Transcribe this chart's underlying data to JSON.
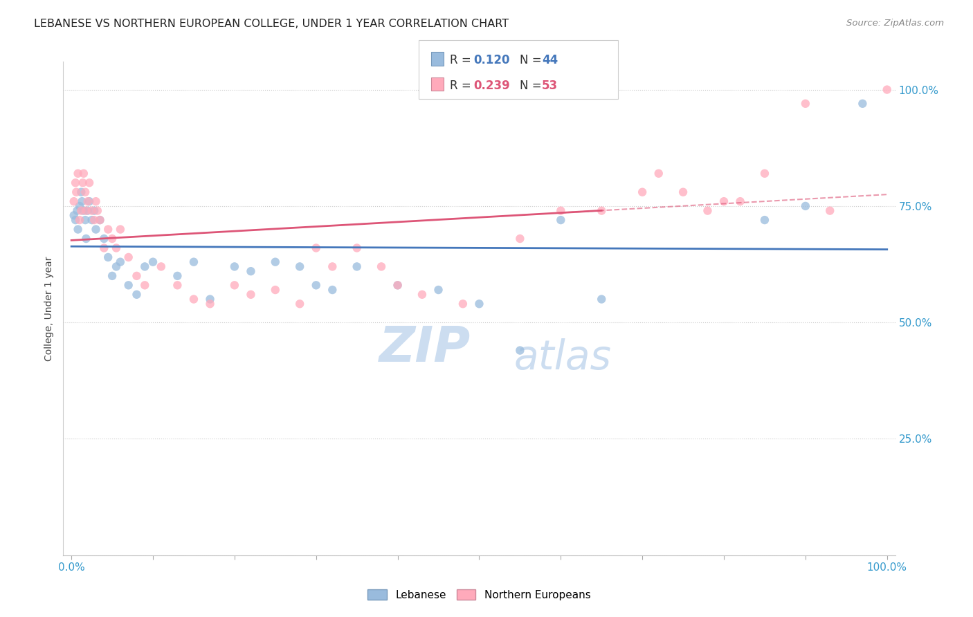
{
  "title": "LEBANESE VS NORTHERN EUROPEAN COLLEGE, UNDER 1 YEAR CORRELATION CHART",
  "source": "Source: ZipAtlas.com",
  "ylabel": "College, Under 1 year",
  "legend1_label": "Lebanese",
  "legend2_label": "Northern Europeans",
  "R1": 0.12,
  "N1": 44,
  "R2": 0.239,
  "N2": 53,
  "color_blue": "#99BBDD",
  "color_pink": "#FFAABB",
  "color_blue_line": "#4477BB",
  "color_pink_line": "#DD5577",
  "watermark_zip": "ZIP",
  "watermark_atlas": "atlas",
  "blue_x": [
    0.3,
    0.5,
    0.7,
    0.8,
    1.0,
    1.2,
    1.3,
    1.5,
    1.7,
    1.8,
    2.0,
    2.2,
    2.5,
    2.8,
    3.0,
    3.5,
    4.0,
    4.5,
    5.0,
    5.5,
    6.0,
    7.0,
    8.0,
    9.0,
    10.0,
    13.0,
    15.0,
    17.0,
    20.0,
    22.0,
    25.0,
    28.0,
    30.0,
    32.0,
    35.0,
    40.0,
    45.0,
    50.0,
    55.0,
    60.0,
    65.0,
    85.0,
    90.0,
    97.0
  ],
  "blue_y": [
    73.0,
    72.0,
    74.0,
    70.0,
    75.0,
    78.0,
    76.0,
    74.0,
    72.0,
    68.0,
    74.0,
    76.0,
    72.0,
    74.0,
    70.0,
    72.0,
    68.0,
    64.0,
    60.0,
    62.0,
    63.0,
    58.0,
    56.0,
    62.0,
    63.0,
    60.0,
    63.0,
    55.0,
    62.0,
    61.0,
    63.0,
    62.0,
    58.0,
    57.0,
    62.0,
    58.0,
    57.0,
    54.0,
    44.0,
    72.0,
    55.0,
    72.0,
    75.0,
    97.0
  ],
  "pink_x": [
    0.3,
    0.5,
    0.6,
    0.8,
    1.0,
    1.2,
    1.4,
    1.5,
    1.7,
    1.8,
    2.0,
    2.2,
    2.5,
    2.8,
    3.0,
    3.2,
    3.5,
    4.0,
    4.5,
    5.0,
    5.5,
    6.0,
    7.0,
    8.0,
    9.0,
    11.0,
    13.0,
    15.0,
    17.0,
    20.0,
    22.0,
    25.0,
    28.0,
    30.0,
    32.0,
    35.0,
    38.0,
    40.0,
    43.0,
    48.0,
    55.0,
    60.0,
    65.0,
    70.0,
    72.0,
    75.0,
    78.0,
    80.0,
    82.0,
    85.0,
    90.0,
    93.0,
    100.0
  ],
  "pink_y": [
    76.0,
    80.0,
    78.0,
    82.0,
    72.0,
    74.0,
    80.0,
    82.0,
    78.0,
    74.0,
    76.0,
    80.0,
    74.0,
    72.0,
    76.0,
    74.0,
    72.0,
    66.0,
    70.0,
    68.0,
    66.0,
    70.0,
    64.0,
    60.0,
    58.0,
    62.0,
    58.0,
    55.0,
    54.0,
    58.0,
    56.0,
    57.0,
    54.0,
    66.0,
    62.0,
    66.0,
    62.0,
    58.0,
    56.0,
    54.0,
    68.0,
    74.0,
    74.0,
    78.0,
    82.0,
    78.0,
    74.0,
    76.0,
    76.0,
    82.0,
    97.0,
    74.0,
    100.0
  ]
}
